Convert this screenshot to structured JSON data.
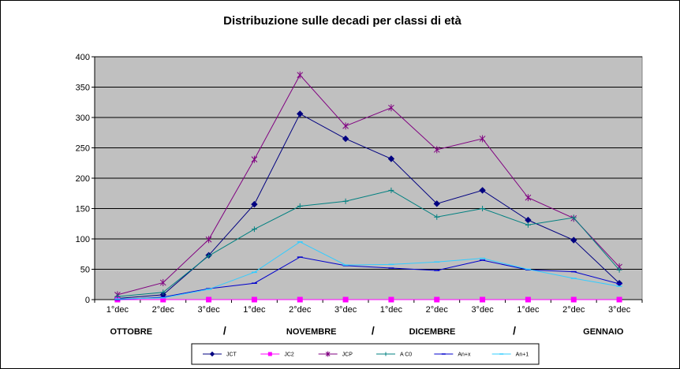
{
  "chart_data": {
    "type": "line",
    "title": "Distribuzione sulle decadi  per classi di età",
    "xlabel": "",
    "ylabel": "",
    "categories": [
      "1°dec",
      "2°dec",
      "3°dec",
      "1°dec",
      "2°dec",
      "3°dec",
      "1°dec",
      "2°dec",
      "3°dec",
      "1°dec",
      "2°dec",
      "3°dec"
    ],
    "group_labels": [
      {
        "text": "OTTOBRE",
        "at": 0.3
      },
      {
        "text": "/",
        "at": 2.35
      },
      {
        "text": "NOVEMBRE",
        "at": 4.25
      },
      {
        "text": "/",
        "at": 5.6
      },
      {
        "text": "DICEMBRE",
        "at": 6.9
      },
      {
        "text": "/",
        "at": 8.7
      },
      {
        "text": "GENNAIO",
        "at": 10.65
      }
    ],
    "ylim": [
      0,
      400
    ],
    "yticks": [
      0,
      50,
      100,
      150,
      200,
      250,
      300,
      350,
      400
    ],
    "grid": true,
    "plot_background": "#c0c0c0",
    "legend_position": "bottom",
    "series": [
      {
        "name": "JCT",
        "color": "#000080",
        "marker": "diamond",
        "values": [
          2,
          8,
          73,
          157,
          306,
          265,
          232,
          158,
          180,
          131,
          98,
          27
        ]
      },
      {
        "name": "JC2",
        "color": "#ff00ff",
        "marker": "square",
        "values": [
          0,
          0,
          0,
          0,
          0,
          0,
          0,
          0,
          0,
          0,
          0,
          0
        ]
      },
      {
        "name": "JCP",
        "color": "#800080",
        "marker": "asterisk",
        "values": [
          8,
          28,
          99,
          231,
          370,
          286,
          316,
          247,
          265,
          168,
          134,
          54
        ]
      },
      {
        "name": "A C0",
        "color": "#008080",
        "marker": "plus",
        "values": [
          5,
          12,
          72,
          116,
          154,
          162,
          180,
          136,
          150,
          123,
          135,
          49
        ]
      },
      {
        "name": "An+x",
        "color": "#0000cc",
        "marker": "dash",
        "values": [
          0,
          4,
          18,
          27,
          70,
          56,
          52,
          48,
          65,
          49,
          46,
          26
        ]
      },
      {
        "name": "An+1",
        "color": "#33ccff",
        "marker": "dash",
        "values": [
          1,
          3,
          17,
          45,
          95,
          57,
          58,
          62,
          68,
          50,
          35,
          22
        ]
      }
    ]
  }
}
